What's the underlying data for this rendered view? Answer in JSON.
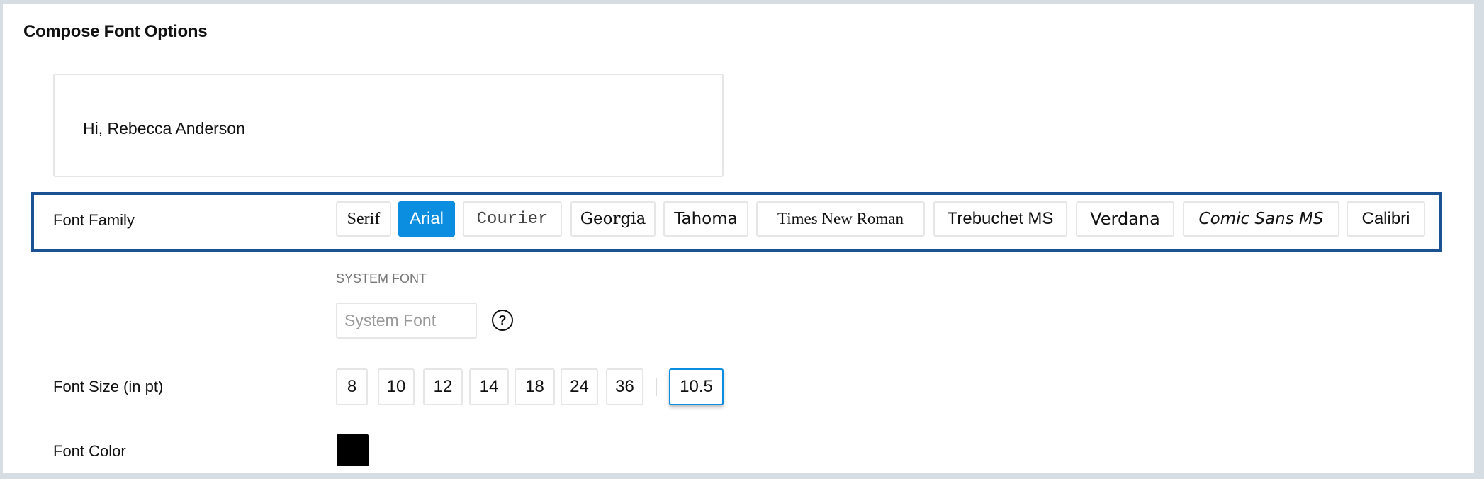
{
  "title": "Compose Font Options",
  "preview": {
    "text": "Hi, Rebecca Anderson"
  },
  "font_family": {
    "label": "Font Family",
    "options": [
      "Serif",
      "Arial",
      "Courier",
      "Georgia",
      "Tahoma",
      "Times New Roman",
      "Trebuchet MS",
      "Verdana",
      "Comic Sans MS",
      "Calibri"
    ],
    "selected": "Arial"
  },
  "system_font": {
    "label": "SYSTEM FONT",
    "placeholder": "System Font",
    "help_icon": "question-circle-icon"
  },
  "font_size": {
    "label": "Font Size (in pt)",
    "options": [
      "8",
      "10",
      "12",
      "14",
      "18",
      "24",
      "36"
    ],
    "custom_value": "10.5"
  },
  "font_color": {
    "label": "Font Color",
    "value": "#000000"
  },
  "colors": {
    "accent": "#0b8ee0",
    "highlight_border": "#1a5294"
  }
}
